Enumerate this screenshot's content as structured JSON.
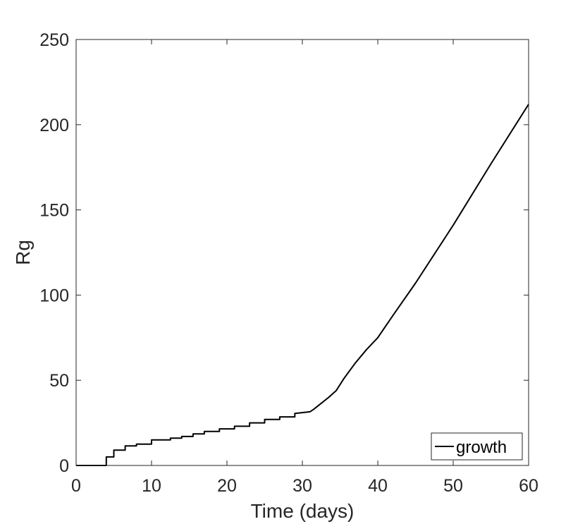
{
  "chart_data": {
    "type": "line",
    "title": "",
    "xlabel": "Time (days)",
    "ylabel": "Rg",
    "xlim": [
      0,
      60
    ],
    "ylim": [
      0,
      250
    ],
    "xticks": [
      0,
      10,
      20,
      30,
      40,
      50,
      60
    ],
    "yticks": [
      0,
      50,
      100,
      150,
      200,
      250
    ],
    "xtick_labels": [
      "0",
      "10",
      "20",
      "30",
      "40",
      "50",
      "60"
    ],
    "ytick_labels": [
      "0",
      "50",
      "100",
      "150",
      "200",
      "250"
    ],
    "grid": false,
    "legend": {
      "position": "bottom-right",
      "entries": [
        "growth"
      ]
    },
    "series": [
      {
        "name": "growth",
        "color": "#000000",
        "style": "step",
        "x": [
          0,
          4,
          4,
          5,
          5,
          6.5,
          6.5,
          8,
          8,
          10,
          10,
          12.5,
          12.5,
          14,
          14,
          15.5,
          15.5,
          17,
          17,
          19,
          19,
          21,
          21,
          23,
          23,
          25,
          25,
          27,
          27,
          29,
          29,
          31,
          31.5,
          32.5,
          33.5,
          34.5,
          35.5,
          37,
          38.5,
          40,
          42,
          45,
          50,
          55,
          60
        ],
        "y": [
          0,
          0,
          5,
          5,
          9,
          9,
          11.5,
          11.5,
          12.5,
          12.5,
          15,
          15,
          16,
          16,
          17,
          17,
          18.5,
          18.5,
          20,
          20,
          21.5,
          21.5,
          23,
          23,
          25,
          25,
          27,
          27,
          28.5,
          28.5,
          30.5,
          31.5,
          33,
          36.5,
          40,
          44,
          51,
          60,
          68,
          75,
          88,
          107,
          141,
          177,
          212
        ]
      }
    ]
  }
}
